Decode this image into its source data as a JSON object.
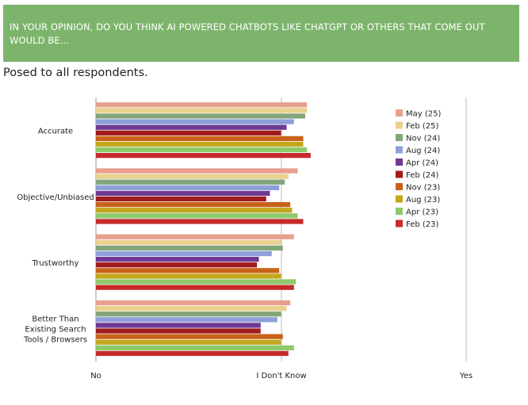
{
  "header": {
    "question": "IN YOUR OPINION, DO YOU THINK AI POWERED CHATBOTS LIKE CHATGPT OR OTHERS THAT COME OUT WOULD BE...",
    "subtitle": "Posed to all respondents."
  },
  "chart_data": {
    "type": "bar",
    "orientation": "horizontal",
    "categories": [
      "Accurate",
      "Objective/Unbiased",
      "Trustworthy",
      "Better Than Existing Search Tools / Browsers"
    ],
    "category_label_lines": [
      [
        "Accurate"
      ],
      [
        "Objective/Unbiased"
      ],
      [
        "Trustworthy"
      ],
      [
        "Better Than",
        "Existing Search",
        "Tools / Browsers"
      ]
    ],
    "x_tick_labels": [
      "No",
      "I Don't Know",
      "Yes"
    ],
    "xlim": [
      0,
      2
    ],
    "legend_position": "right",
    "grid": false,
    "series": [
      {
        "name": "May (25)",
        "color": "#e8a08e",
        "values": [
          1.14,
          1.09,
          1.07,
          1.05
        ]
      },
      {
        "name": "Feb (25)",
        "color": "#ead08f",
        "values": [
          1.14,
          1.04,
          1.0,
          1.03
        ]
      },
      {
        "name": "Nov (24)",
        "color": "#82a67a",
        "values": [
          1.13,
          1.02,
          1.01,
          1.0
        ]
      },
      {
        "name": "Aug (24)",
        "color": "#8f9fd8",
        "values": [
          1.07,
          0.99,
          0.95,
          0.98
        ]
      },
      {
        "name": "Apr (24)",
        "color": "#6f3993",
        "values": [
          1.03,
          0.94,
          0.88,
          0.89
        ]
      },
      {
        "name": "Feb (24)",
        "color": "#a01b1b",
        "values": [
          1.0,
          0.92,
          0.87,
          0.89
        ]
      },
      {
        "name": "Nov (23)",
        "color": "#c8621a",
        "values": [
          1.12,
          1.05,
          0.99,
          1.01
        ]
      },
      {
        "name": "Aug (23)",
        "color": "#c3a71d",
        "values": [
          1.12,
          1.06,
          1.0,
          1.0
        ]
      },
      {
        "name": "Apr (23)",
        "color": "#8ec96c",
        "values": [
          1.14,
          1.09,
          1.08,
          1.07
        ]
      },
      {
        "name": "Feb (23)",
        "color": "#c72a2a",
        "values": [
          1.16,
          1.12,
          1.07,
          1.04
        ]
      }
    ]
  }
}
